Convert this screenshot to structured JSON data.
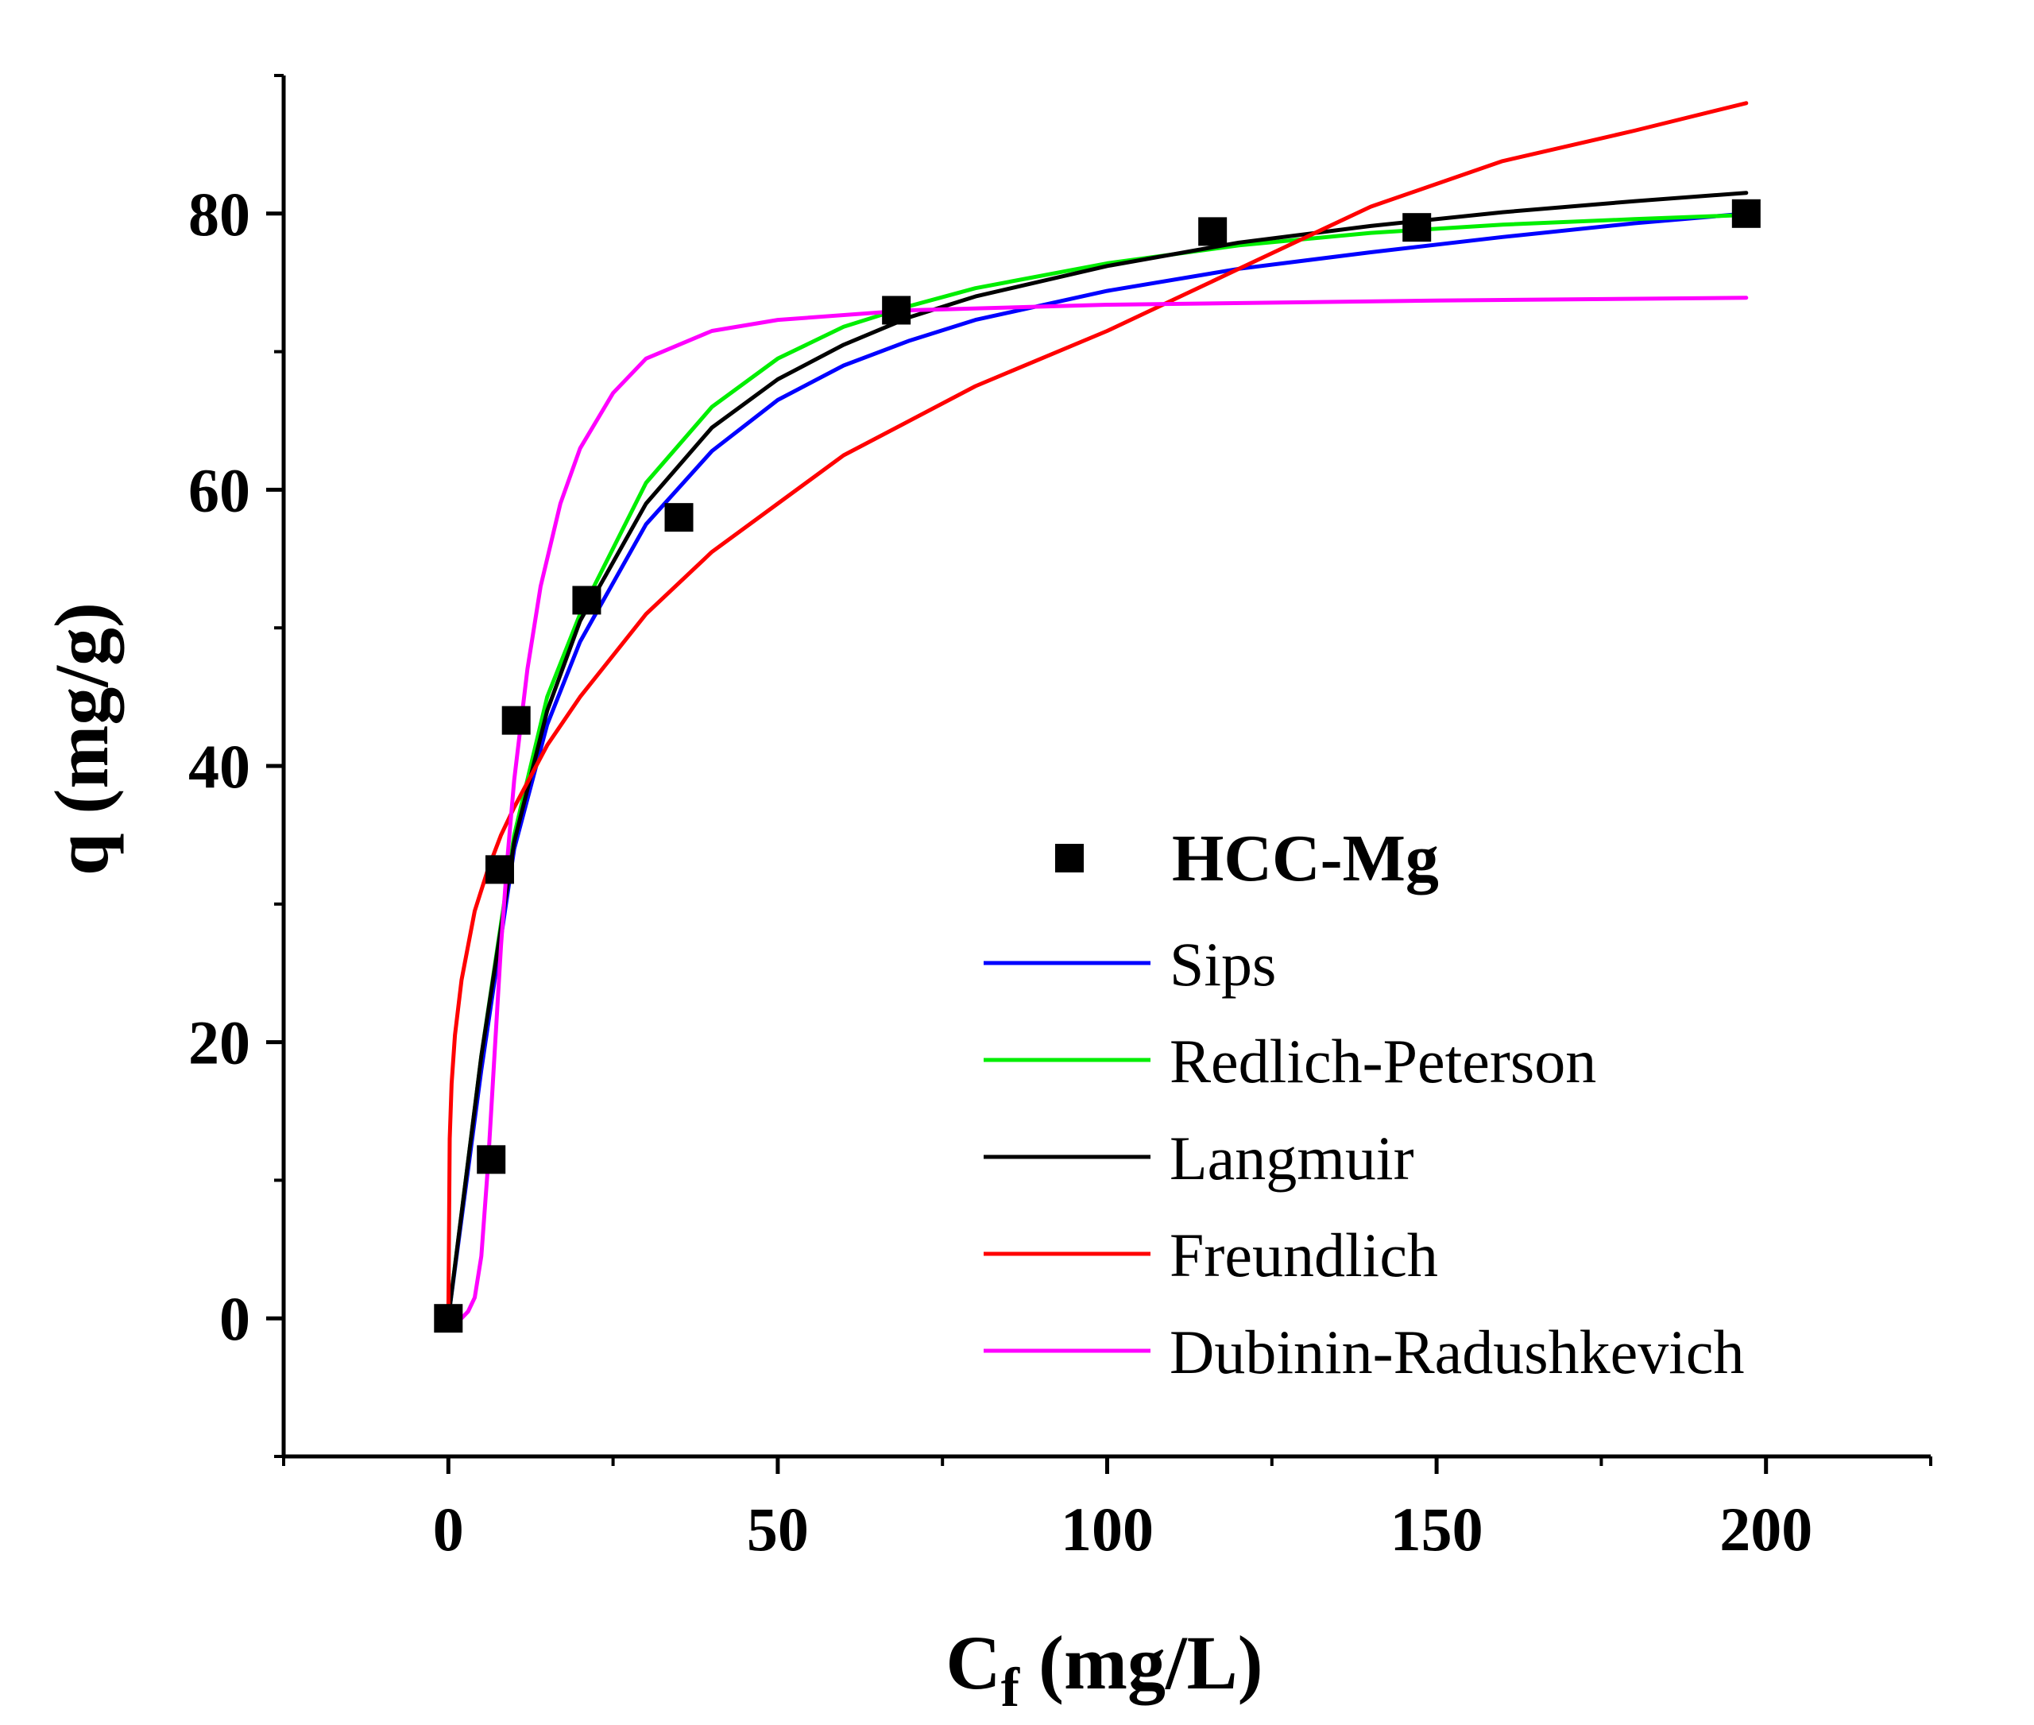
{
  "chart_data": {
    "type": "scatter",
    "xlabel_main": "C",
    "xlabel_sub": "f",
    "xlabel_rest": " (mg/L)",
    "ylabel": "q (mg/g)",
    "xlim": [
      -25,
      225
    ],
    "ylim": [
      -10,
      90
    ],
    "xticks": [
      0,
      50,
      100,
      150,
      200
    ],
    "yticks": [
      0,
      20,
      40,
      60,
      80
    ],
    "xtick_labels": [
      "0",
      "50",
      "100",
      "150",
      "200"
    ],
    "ytick_labels": [
      "0",
      "20",
      "40",
      "60",
      "80"
    ],
    "legend_position": "lower-right",
    "points": {
      "name": "HCC-Mg",
      "color": "#000000",
      "x": [
        0,
        6.5,
        7.8,
        10.3,
        21,
        35,
        68,
        116,
        147,
        197
      ],
      "y": [
        0,
        11.5,
        32.5,
        43.3,
        52,
        58,
        73,
        78.7,
        79,
        80
      ]
    },
    "series": [
      {
        "name": "Sips",
        "color": "#0000ff",
        "x": [
          0,
          5,
          10,
          15,
          20,
          30,
          40,
          50,
          60,
          70,
          80,
          100,
          120,
          140,
          160,
          180,
          197
        ],
        "y": [
          0,
          18,
          34,
          43,
          49,
          57.5,
          62.8,
          66.5,
          69,
          70.8,
          72.3,
          74.4,
          76,
          77.2,
          78.3,
          79.3,
          80
        ]
      },
      {
        "name": "Redlich-Peterson",
        "color": "#00ee00",
        "x": [
          0,
          5,
          10,
          15,
          20,
          30,
          40,
          50,
          60,
          70,
          80,
          100,
          120,
          140,
          160,
          180,
          197
        ],
        "y": [
          0,
          19,
          35,
          45,
          51,
          60.5,
          66,
          69.5,
          71.8,
          73.3,
          74.6,
          76.4,
          77.7,
          78.6,
          79.2,
          79.6,
          79.9
        ]
      },
      {
        "name": "Langmuir",
        "color": "#000000",
        "x": [
          0,
          5,
          10,
          15,
          20,
          30,
          40,
          50,
          60,
          70,
          80,
          100,
          120,
          140,
          160,
          180,
          197
        ],
        "y": [
          0,
          19,
          34.5,
          44,
          50.5,
          59,
          64.5,
          68,
          70.5,
          72.5,
          74,
          76.2,
          77.9,
          79.1,
          80.1,
          80.9,
          81.5
        ]
      },
      {
        "name": "Freundlich",
        "color": "#ff0000",
        "x": [
          0,
          0.2,
          0.5,
          1,
          2,
          4,
          6,
          8,
          10,
          15,
          20,
          30,
          40,
          50,
          60,
          80,
          100,
          120,
          140,
          160,
          180,
          197
        ],
        "y": [
          0,
          13,
          17,
          20.5,
          24.5,
          29.5,
          32.5,
          35,
          37,
          41.5,
          45,
          51,
          55.5,
          59,
          62.5,
          67.5,
          71.5,
          76,
          80.5,
          83.8,
          86,
          88
        ]
      },
      {
        "name": "Dubinin-Radushkevich",
        "color": "#ff00ff",
        "x": [
          0,
          2,
          3,
          4,
          5,
          6,
          7,
          8,
          9,
          10,
          12,
          14,
          17,
          20,
          25,
          30,
          40,
          50,
          70,
          100,
          150,
          197
        ],
        "y": [
          0,
          0,
          0.5,
          1.5,
          4.5,
          11,
          19,
          27,
          33.5,
          39,
          47,
          53,
          59,
          63,
          67,
          69.5,
          71.5,
          72.3,
          73,
          73.4,
          73.7,
          73.9
        ]
      }
    ]
  }
}
